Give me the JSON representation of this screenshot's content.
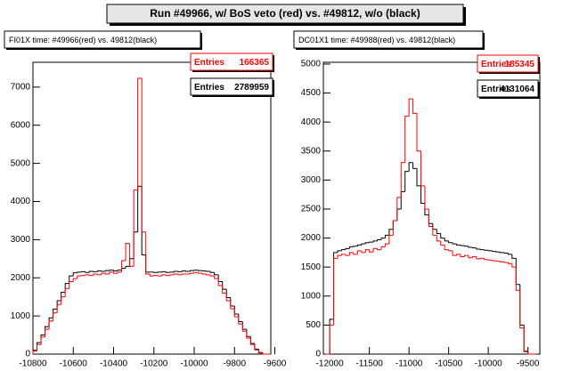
{
  "page_title": "Run #49966, w/ BoS veto (red) vs. #49812, w/o (black)",
  "chart_data": [
    {
      "type": "histogram",
      "title": "FI01X time: #49966(red) vs. 49812(black)",
      "xlim": [
        -10800,
        -9620
      ],
      "ylim": [
        0,
        7650
      ],
      "xticks": [
        -10800,
        -10600,
        -10400,
        -10200,
        -10000,
        -9800,
        -9600
      ],
      "yticks": [
        0,
        1000,
        2000,
        3000,
        4000,
        5000,
        6000,
        7000
      ],
      "bins": [
        -10800,
        -10780,
        -10760,
        -10740,
        -10720,
        -10700,
        -10680,
        -10660,
        -10640,
        -10620,
        -10600,
        -10580,
        -10560,
        -10540,
        -10520,
        -10500,
        -10480,
        -10460,
        -10440,
        -10420,
        -10400,
        -10380,
        -10360,
        -10340,
        -10320,
        -10300,
        -10280,
        -10260,
        -10240,
        -10220,
        -10200,
        -10180,
        -10160,
        -10140,
        -10120,
        -10100,
        -10080,
        -10060,
        -10040,
        -10020,
        -10000,
        -9980,
        -9960,
        -9940,
        -9920,
        -9900,
        -9880,
        -9860,
        -9840,
        -9820,
        -9800,
        -9780,
        -9760,
        -9740,
        -9720,
        -9700,
        -9680,
        -9660,
        -9640,
        -9620
      ],
      "series": [
        {
          "color": "#000000",
          "values": [
            100,
            300,
            500,
            720,
            950,
            1180,
            1400,
            1620,
            1850,
            2050,
            2130,
            2150,
            2160,
            2140,
            2170,
            2160,
            2180,
            2170,
            2190,
            2200,
            2180,
            2200,
            2250,
            2300,
            2500,
            3200,
            4400,
            2600,
            2150,
            2150,
            2140,
            2150,
            2160,
            2140,
            2150,
            2170,
            2160,
            2180,
            2170,
            2190,
            2200,
            2190,
            2180,
            2170,
            2140,
            2080,
            1900,
            1700,
            1480,
            1260,
            1050,
            850,
            650,
            460,
            280,
            130,
            40,
            0,
            0
          ]
        },
        {
          "color": "#ff0000",
          "values": [
            80,
            250,
            450,
            650,
            870,
            1080,
            1300,
            1500,
            1720,
            1900,
            1980,
            2050,
            2060,
            2080,
            2060,
            2100,
            2080,
            2120,
            2100,
            2150,
            2120,
            2150,
            2450,
            2900,
            2300,
            4300,
            7230,
            3200,
            2100,
            2050,
            2060,
            2050,
            2080,
            2060,
            2080,
            2100,
            2080,
            2100,
            2100,
            2120,
            2140,
            2120,
            2100,
            2080,
            2050,
            1980,
            1800,
            1600,
            1400,
            1190,
            980,
            790,
            600,
            420,
            250,
            110,
            30,
            0,
            0
          ]
        }
      ],
      "stats": [
        {
          "label": "Entries",
          "value": 166365,
          "color": "#ff0000"
        },
        {
          "label": "Entries",
          "value": 2789959,
          "color": "#000000"
        }
      ]
    },
    {
      "type": "histogram",
      "title": "DC01X1 time: #49988(red) vs. 49812(black)",
      "xlim": [
        -12080,
        -9350
      ],
      "ylim": [
        0,
        5030
      ],
      "xticks": [
        -12000,
        -11500,
        -11000,
        -10500,
        -10000,
        -9500
      ],
      "yticks": [
        0,
        500,
        1000,
        1500,
        2000,
        2500,
        3000,
        3500,
        4000,
        4500,
        5000
      ],
      "bins": [
        -12050,
        -12000,
        -11950,
        -11900,
        -11850,
        -11800,
        -11750,
        -11700,
        -11650,
        -11600,
        -11550,
        -11500,
        -11450,
        -11400,
        -11350,
        -11300,
        -11250,
        -11200,
        -11150,
        -11100,
        -11050,
        -11000,
        -10950,
        -10900,
        -10850,
        -10800,
        -10750,
        -10700,
        -10650,
        -10600,
        -10550,
        -10500,
        -10450,
        -10400,
        -10350,
        -10300,
        -10250,
        -10200,
        -10150,
        -10100,
        -10050,
        -10000,
        -9950,
        -9900,
        -9850,
        -9800,
        -9750,
        -9700,
        -9650,
        -9600,
        -9550,
        -9500,
        -9450,
        -9400
      ],
      "series": [
        {
          "color": "#000000",
          "values": [
            0,
            600,
            1750,
            1780,
            1800,
            1820,
            1850,
            1860,
            1880,
            1900,
            1920,
            1930,
            1950,
            1970,
            2000,
            2050,
            2150,
            2300,
            2500,
            2800,
            3150,
            3300,
            3200,
            2900,
            2600,
            2400,
            2250,
            2150,
            2080,
            2000,
            1950,
            1920,
            1900,
            1880,
            1870,
            1860,
            1840,
            1830,
            1810,
            1800,
            1790,
            1780,
            1770,
            1760,
            1750,
            1740,
            1720,
            1650,
            1200,
            500,
            50,
            0,
            0
          ]
        },
        {
          "color": "#ff0000",
          "values": [
            0,
            500,
            1650,
            1700,
            1720,
            1700,
            1750,
            1720,
            1780,
            1750,
            1800,
            1760,
            1820,
            1800,
            1850,
            1900,
            2050,
            2300,
            2700,
            3300,
            4100,
            4400,
            4150,
            3500,
            2900,
            2500,
            2200,
            2050,
            1950,
            1880,
            1800,
            1780,
            1700,
            1720,
            1680,
            1700,
            1660,
            1680,
            1640,
            1650,
            1630,
            1620,
            1610,
            1600,
            1590,
            1580,
            1560,
            1500,
            1100,
            450,
            40,
            0,
            0
          ]
        }
      ],
      "stats": [
        {
          "label": "Entries",
          "value": 185345,
          "color": "#ff0000"
        },
        {
          "label": "Entries",
          "value": 4131064,
          "color": "#000000"
        }
      ]
    }
  ]
}
